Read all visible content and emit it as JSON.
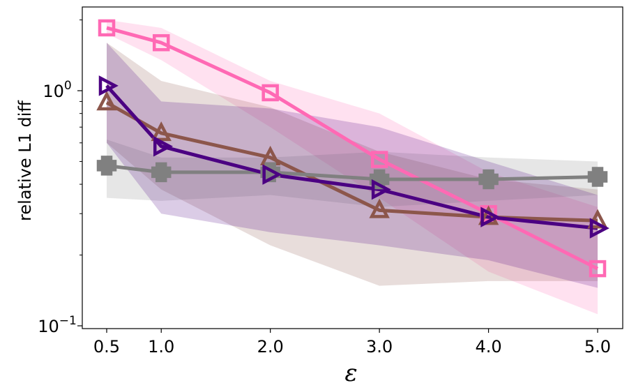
{
  "chart_data": {
    "type": "line",
    "title": "",
    "xlabel": "ε",
    "ylabel": "relative L1 diff",
    "yscale": "log",
    "ylim": [
      0.095,
      2.3
    ],
    "xlim": [
      0.3,
      5.2
    ],
    "x": [
      0.5,
      1.0,
      2.0,
      3.0,
      4.0,
      5.0
    ],
    "x_tick_labels": [
      "0.5",
      "1.0",
      "2.0",
      "3.0",
      "4.0",
      "5.0"
    ],
    "y_ticks": [
      {
        "value": 1.0,
        "base": "10",
        "exp": "0"
      },
      {
        "value": 0.1,
        "base": "10",
        "exp": "−1"
      }
    ],
    "series": [
      {
        "name": "pink-square",
        "color": "#ff69b4",
        "marker": "square",
        "values": [
          1.85,
          1.6,
          0.98,
          0.51,
          0.3,
          0.175
        ],
        "band_upper": [
          2.0,
          1.85,
          1.1,
          0.8,
          0.45,
          0.32
        ],
        "band_lower": [
          1.75,
          1.35,
          0.7,
          0.35,
          0.17,
          0.112
        ]
      },
      {
        "name": "brown-triangle",
        "color": "#8c564b",
        "marker": "triangle-up",
        "values": [
          0.89,
          0.66,
          0.52,
          0.31,
          0.29,
          0.28
        ],
        "band_upper": [
          1.6,
          1.1,
          0.85,
          0.55,
          0.42,
          0.38
        ],
        "band_lower": [
          0.6,
          0.38,
          0.22,
          0.148,
          0.155,
          0.155
        ]
      },
      {
        "name": "gray-plus",
        "color": "#808080",
        "marker": "plus",
        "values": [
          0.48,
          0.45,
          0.45,
          0.42,
          0.42,
          0.43
        ],
        "band_upper": [
          0.62,
          0.52,
          0.52,
          0.55,
          0.52,
          0.5
        ],
        "band_lower": [
          0.35,
          0.34,
          0.36,
          0.32,
          0.34,
          0.36
        ]
      },
      {
        "name": "indigo-triangle",
        "color": "#4b0082",
        "marker": "triangle-right",
        "values": [
          1.05,
          0.58,
          0.44,
          0.38,
          0.29,
          0.26
        ],
        "band_upper": [
          1.6,
          0.9,
          0.84,
          0.7,
          0.5,
          0.36
        ],
        "band_lower": [
          0.6,
          0.3,
          0.25,
          0.22,
          0.19,
          0.145
        ]
      }
    ]
  }
}
